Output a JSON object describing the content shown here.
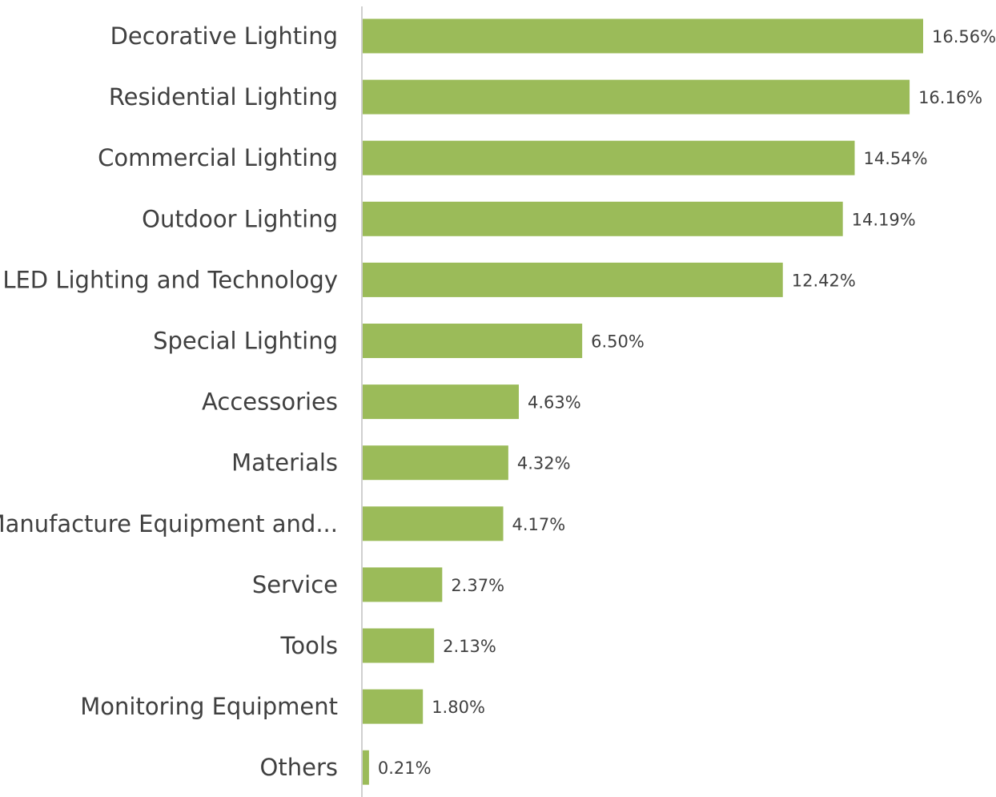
{
  "colors": {
    "bar": "#9bbb59",
    "axis": "#d0d0d0",
    "text": "#404040"
  },
  "chart_data": {
    "type": "bar",
    "orientation": "horizontal",
    "categories": [
      "Decorative Lighting",
      "Residential Lighting",
      "Commercial Lighting",
      "Outdoor Lighting",
      "LED Lighting and Technology",
      "Special Lighting",
      "Accessories",
      "Materials",
      "Manufacture Equipment and...",
      "Service",
      "Tools",
      "Monitoring Equipment",
      "Others"
    ],
    "values": [
      16.56,
      16.16,
      14.54,
      14.19,
      12.42,
      6.5,
      4.63,
      4.32,
      4.17,
      2.37,
      2.13,
      1.8,
      0.21
    ],
    "data_labels": [
      "16.56%",
      "16.16%",
      "14.54%",
      "14.19%",
      "12.42%",
      "6.50%",
      "4.63%",
      "4.32%",
      "4.17%",
      "2.37%",
      "2.13%",
      "1.80%",
      "0.21%"
    ],
    "xlim": [
      0,
      16.56
    ],
    "grid": false,
    "legend": "none"
  }
}
